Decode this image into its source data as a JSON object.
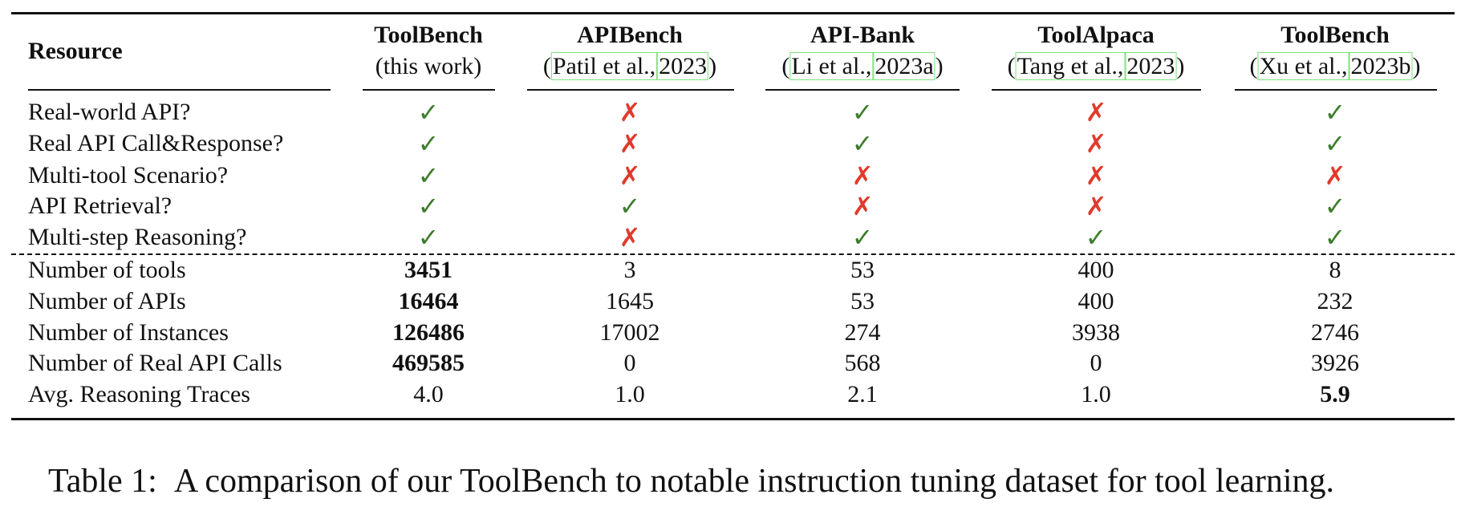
{
  "table": {
    "header": {
      "label": "Resource",
      "columns": [
        {
          "name": "ToolBench",
          "sub": "(this work)"
        },
        {
          "name": "APIBench",
          "cite": {
            "pre": "(",
            "authors": "Patil et al.,",
            "year": "2023",
            "post": ")"
          }
        },
        {
          "name": "API-Bank",
          "cite": {
            "pre": "(",
            "authors": "Li et al.,",
            "year": "2023a",
            "post": ")"
          }
        },
        {
          "name": "ToolAlpaca",
          "cite": {
            "pre": "(",
            "authors": "Tang et al.,",
            "year": "2023",
            "post": ")"
          }
        },
        {
          "name": "ToolBench",
          "cite": {
            "pre": "(",
            "authors": "Xu et al.,",
            "year": "2023b",
            "post": ")"
          }
        }
      ]
    },
    "feature_rows": [
      {
        "label": "Real-world API?",
        "cells": [
          {
            "text": "✓",
            "color": "#3d7d2b"
          },
          {
            "text": "✗",
            "color": "#e03a2c"
          },
          {
            "text": "✓",
            "color": "#3d7d2b"
          },
          {
            "text": "✗",
            "color": "#e03a2c"
          },
          {
            "text": "✓",
            "color": "#3d7d2b"
          }
        ]
      },
      {
        "label": "Real API Call&Response?",
        "cells": [
          {
            "text": "✓",
            "color": "#3d7d2b"
          },
          {
            "text": "✗",
            "color": "#e03a2c"
          },
          {
            "text": "✓",
            "color": "#3d7d2b"
          },
          {
            "text": "✗",
            "color": "#e03a2c"
          },
          {
            "text": "✓",
            "color": "#3d7d2b"
          }
        ]
      },
      {
        "label": "Multi-tool Scenario?",
        "cells": [
          {
            "text": "✓",
            "color": "#3d7d2b"
          },
          {
            "text": "✗",
            "color": "#e03a2c"
          },
          {
            "text": "✗",
            "color": "#e03a2c"
          },
          {
            "text": "✗",
            "color": "#e03a2c"
          },
          {
            "text": "✗",
            "color": "#e03a2c"
          }
        ]
      },
      {
        "label": "API Retrieval?",
        "cells": [
          {
            "text": "✓",
            "color": "#3d7d2b"
          },
          {
            "text": "✓",
            "color": "#3d7d2b"
          },
          {
            "text": "✗",
            "color": "#e03a2c"
          },
          {
            "text": "✗",
            "color": "#e03a2c"
          },
          {
            "text": "✓",
            "color": "#3d7d2b"
          }
        ]
      },
      {
        "label": "Multi-step Reasoning?",
        "cells": [
          {
            "text": "✓",
            "color": "#3d7d2b"
          },
          {
            "text": "✗",
            "color": "#e03a2c"
          },
          {
            "text": "✓",
            "color": "#3d7d2b"
          },
          {
            "text": "✓",
            "color": "#3d7d2b"
          },
          {
            "text": "✓",
            "color": "#3d7d2b"
          }
        ]
      }
    ],
    "number_rows": [
      {
        "label": "Number of tools",
        "cells": [
          {
            "text": "3451",
            "bold": true
          },
          {
            "text": "3"
          },
          {
            "text": "53"
          },
          {
            "text": "400"
          },
          {
            "text": "8"
          }
        ]
      },
      {
        "label": "Number of APIs",
        "cells": [
          {
            "text": "16464",
            "bold": true
          },
          {
            "text": "1645"
          },
          {
            "text": "53"
          },
          {
            "text": "400"
          },
          {
            "text": "232"
          }
        ]
      },
      {
        "label": "Number of Instances",
        "cells": [
          {
            "text": "126486",
            "bold": true
          },
          {
            "text": "17002"
          },
          {
            "text": "274"
          },
          {
            "text": "3938"
          },
          {
            "text": "2746"
          }
        ]
      },
      {
        "label": "Number of Real API Calls",
        "cells": [
          {
            "text": "469585",
            "bold": true
          },
          {
            "text": "0"
          },
          {
            "text": "568"
          },
          {
            "text": "0"
          },
          {
            "text": "3926"
          }
        ]
      },
      {
        "label": "Avg. Reasoning Traces",
        "cells": [
          {
            "text": "4.0"
          },
          {
            "text": "1.0"
          },
          {
            "text": "2.1"
          },
          {
            "text": "1.0"
          },
          {
            "text": "5.9",
            "bold": true
          }
        ]
      }
    ]
  },
  "caption": {
    "label": "Table 1:",
    "text": "A comparison of our ToolBench to notable instruction tuning dataset for tool learning."
  }
}
